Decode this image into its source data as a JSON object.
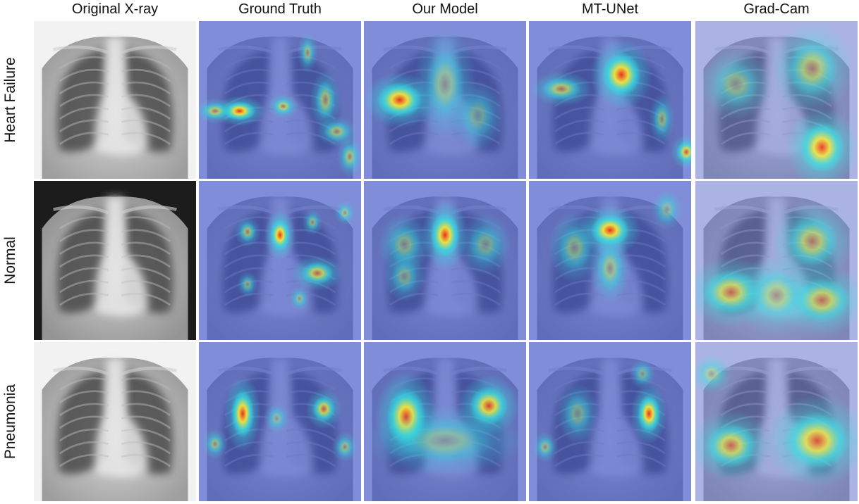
{
  "columns": [
    {
      "key": "original",
      "label": "Original X-ray"
    },
    {
      "key": "ground_truth",
      "label": "Ground Truth"
    },
    {
      "key": "our_model",
      "label": "Our Model"
    },
    {
      "key": "mt_unet",
      "label": "MT-UNet"
    },
    {
      "key": "grad_cam",
      "label": "Grad-Cam"
    }
  ],
  "rows": [
    {
      "key": "heart_failure",
      "label": "Heart Failure"
    },
    {
      "key": "normal",
      "label": "Normal"
    },
    {
      "key": "pneumonia",
      "label": "Pneumonia"
    }
  ],
  "colors": {
    "heatmap_base": "#3a4fc8",
    "heatmap_hot": "#e8321e",
    "heatmap_warm": "#f4e03a",
    "heatmap_cool": "#38d8e0",
    "xray_dark": "#1a1a1a",
    "xray_light": "#f0f0f0"
  }
}
